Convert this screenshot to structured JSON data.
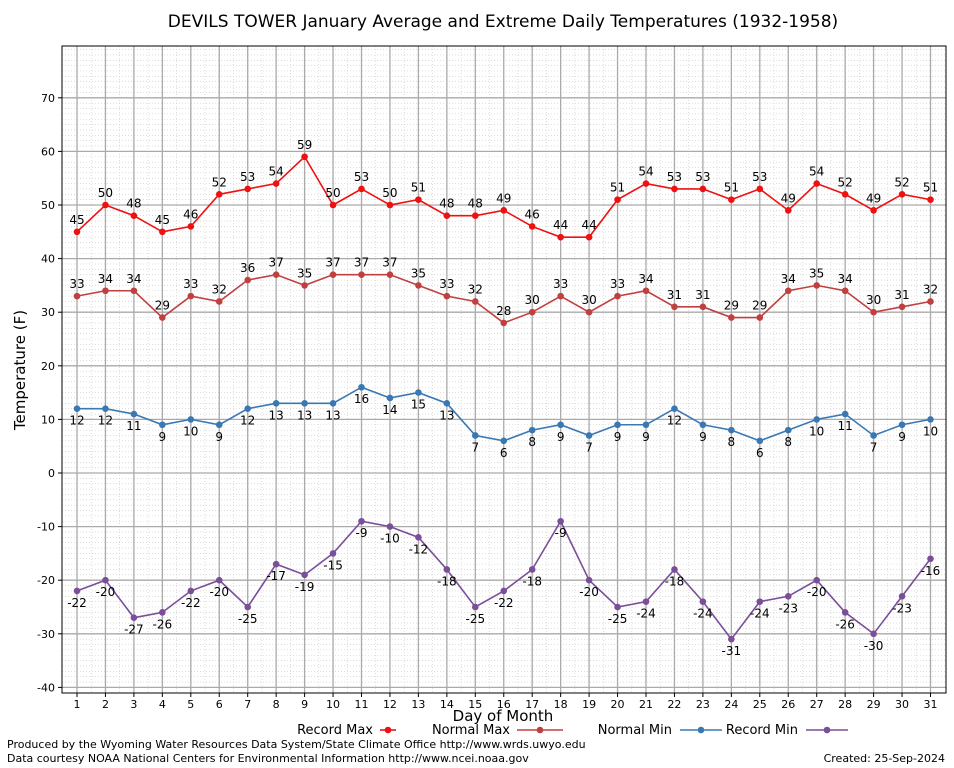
{
  "chart_data": {
    "type": "line",
    "title": "DEVILS TOWER January Average and Extreme Daily Temperatures (1932-1958)",
    "xlabel": "Day of Month",
    "ylabel": "Temperature (F)",
    "ylim": [
      -40,
      80
    ],
    "yticks": [
      -40,
      -30,
      -20,
      -10,
      0,
      10,
      20,
      30,
      40,
      50,
      60,
      70
    ],
    "x": [
      1,
      2,
      3,
      4,
      5,
      6,
      7,
      8,
      9,
      10,
      11,
      12,
      13,
      14,
      15,
      16,
      17,
      18,
      19,
      20,
      21,
      22,
      23,
      24,
      25,
      26,
      27,
      28,
      29,
      30,
      31
    ],
    "grid": true,
    "legend_position": "bottom",
    "series": [
      {
        "name": "Record Max",
        "color": "#ee1111",
        "label_position": "above",
        "values": [
          45,
          50,
          48,
          45,
          46,
          52,
          53,
          54,
          59,
          50,
          53,
          50,
          51,
          48,
          48,
          49,
          46,
          44,
          44,
          51,
          54,
          53,
          53,
          51,
          53,
          49,
          54,
          52,
          49,
          52,
          51
        ]
      },
      {
        "name": "Normal Max",
        "color": "#c04040",
        "label_position": "above",
        "values": [
          33,
          34,
          34,
          29,
          33,
          32,
          36,
          37,
          35,
          37,
          37,
          37,
          35,
          33,
          32,
          28,
          30,
          33,
          30,
          33,
          34,
          31,
          31,
          29,
          29,
          34,
          35,
          34,
          30,
          31,
          32
        ]
      },
      {
        "name": "Normal Min",
        "color": "#3a78b4",
        "label_position": "below",
        "values": [
          12,
          12,
          11,
          9,
          10,
          9,
          12,
          13,
          13,
          13,
          16,
          14,
          15,
          13,
          7,
          6,
          8,
          9,
          7,
          9,
          9,
          12,
          9,
          8,
          6,
          8,
          10,
          11,
          7,
          9,
          10
        ]
      },
      {
        "name": "Record Min",
        "color": "#7a4e98",
        "label_position": "below",
        "values": [
          -22,
          -20,
          -27,
          -26,
          -22,
          -20,
          -25,
          -17,
          -19,
          -15,
          -9,
          -10,
          -12,
          -18,
          -25,
          -22,
          -18,
          -9,
          -20,
          -25,
          -24,
          -18,
          -24,
          -31,
          -24,
          -23,
          -20,
          -26,
          -30,
          -23,
          -16
        ]
      }
    ]
  },
  "footer": {
    "produced_by": "Produced by the Wyoming Water Resources Data System/State Climate Office http://www.wrds.uwyo.edu",
    "data_courtesy": "Data courtesy NOAA National Centers for Environmental Information http://www.ncei.noaa.gov",
    "created": "Created:  25-Sep-2024"
  }
}
